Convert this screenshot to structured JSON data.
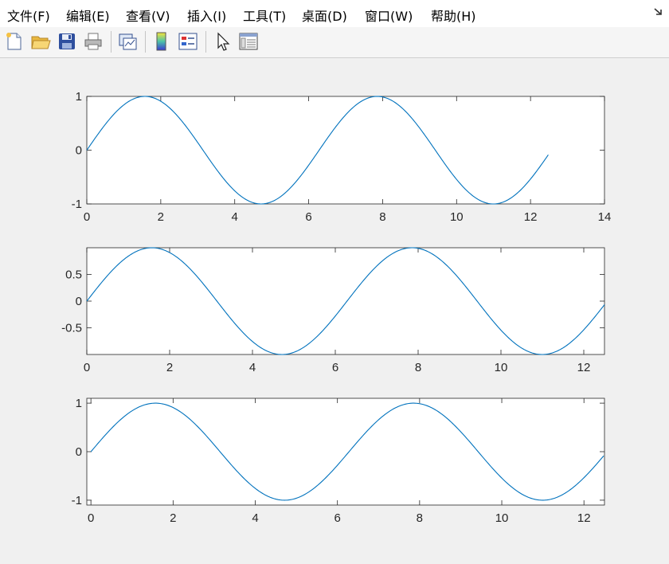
{
  "menu": [
    {
      "name": "menu-file",
      "label": "文件(F)"
    },
    {
      "name": "menu-edit",
      "label": "编辑(E)"
    },
    {
      "name": "menu-view",
      "label": "查看(V)"
    },
    {
      "name": "menu-insert",
      "label": "插入(I)"
    },
    {
      "name": "menu-tools",
      "label": "工具(T)"
    },
    {
      "name": "menu-desktop",
      "label": "桌面(D)"
    },
    {
      "name": "menu-window",
      "label": "窗口(W)"
    },
    {
      "name": "menu-help",
      "label": "帮助(H)"
    }
  ],
  "toolbar": [
    {
      "icon": "new-figure-icon"
    },
    {
      "icon": "open-file-icon"
    },
    {
      "icon": "save-icon"
    },
    {
      "icon": "print-icon"
    },
    {
      "icon": "link-plot-icon"
    },
    {
      "icon": "insert-colorbar-icon"
    },
    {
      "icon": "insert-legend-icon"
    },
    {
      "icon": "edit-plot-pointer-icon"
    },
    {
      "icon": "property-inspector-icon"
    }
  ],
  "colors": {
    "line": "#0072bd",
    "axes": "#262626",
    "grid_tick": "#262626"
  },
  "chart_data": [
    {
      "type": "line",
      "function": "sin(x)",
      "x_range": [
        0,
        12.48
      ],
      "xlim": [
        0,
        14
      ],
      "ylim": [
        -1,
        1
      ],
      "xticks": [
        "0",
        "2",
        "4",
        "6",
        "8",
        "10",
        "12",
        "14"
      ],
      "yticks": [
        "-1",
        "0",
        "1"
      ],
      "title": "",
      "xlabel": "",
      "ylabel": ""
    },
    {
      "type": "line",
      "function": "sin(x)",
      "x_range": [
        0,
        12.5
      ],
      "xlim": [
        0,
        12.5
      ],
      "ylim": [
        -1,
        1
      ],
      "xticks": [
        "0",
        "2",
        "4",
        "6",
        "8",
        "10",
        "12"
      ],
      "yticks": [
        "0.5",
        "0",
        "-0.5"
      ],
      "title": "",
      "xlabel": "",
      "ylabel": ""
    },
    {
      "type": "line",
      "function": "sin(x)",
      "x_range": [
        0,
        12.48
      ],
      "xlim": [
        -0.1,
        12.5
      ],
      "ylim": [
        -1.1,
        1.1
      ],
      "xticks": [
        "0",
        "2",
        "4",
        "6",
        "8",
        "10",
        "12"
      ],
      "yticks": [
        "1",
        "0",
        "-1"
      ],
      "title": "",
      "xlabel": "",
      "ylabel": ""
    }
  ]
}
